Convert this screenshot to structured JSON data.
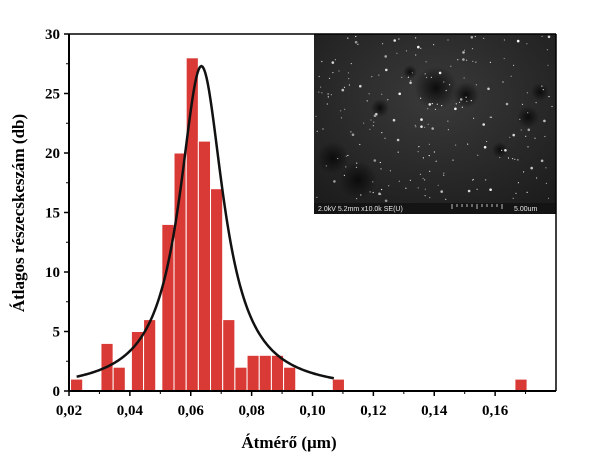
{
  "chart_data": {
    "type": "bar",
    "x": [
      0.0225,
      0.0325,
      0.0365,
      0.0425,
      0.0465,
      0.0525,
      0.0565,
      0.0605,
      0.0645,
      0.0685,
      0.0725,
      0.0765,
      0.0805,
      0.0845,
      0.0885,
      0.0925,
      0.1085,
      0.1685
    ],
    "values": [
      1,
      4,
      2,
      5,
      6,
      14,
      20,
      28,
      21,
      17,
      6,
      2,
      3,
      3,
      3,
      2,
      1,
      1
    ],
    "bin_width": 0.004,
    "xlabel": "Átmérő (µm)",
    "ylabel": "Átlagos részecskeszám (db)",
    "xlim": [
      0.02,
      0.18
    ],
    "ylim": [
      0,
      30
    ],
    "xticks": [
      0.02,
      0.04,
      0.06,
      0.08,
      0.1,
      0.12,
      0.14,
      0.16
    ],
    "xtick_labels": [
      "0,02",
      "0,04",
      "0,06",
      "0,08",
      "0,10",
      "0,12",
      "0,14",
      "0,16"
    ],
    "yticks": [
      0,
      5,
      10,
      15,
      20,
      25,
      30
    ],
    "ytick_labels": [
      "0",
      "5",
      "10",
      "15",
      "20",
      "25",
      "30"
    ],
    "fit_curve": {
      "type": "lorentzian",
      "center": 0.0635,
      "half_width": 0.0088,
      "amplitude": 27.3,
      "x_range": [
        0.0225,
        0.107
      ]
    },
    "bar_color": "#d93a35",
    "bar_edge_color": "#ffffff",
    "curve_color": "#111111",
    "grid": false,
    "legend": "none",
    "inset": {
      "type": "sem-micrograph",
      "caption": "2.0kV 5.2mm x10.0k SE(U)",
      "scale_label": "5.00um"
    }
  }
}
